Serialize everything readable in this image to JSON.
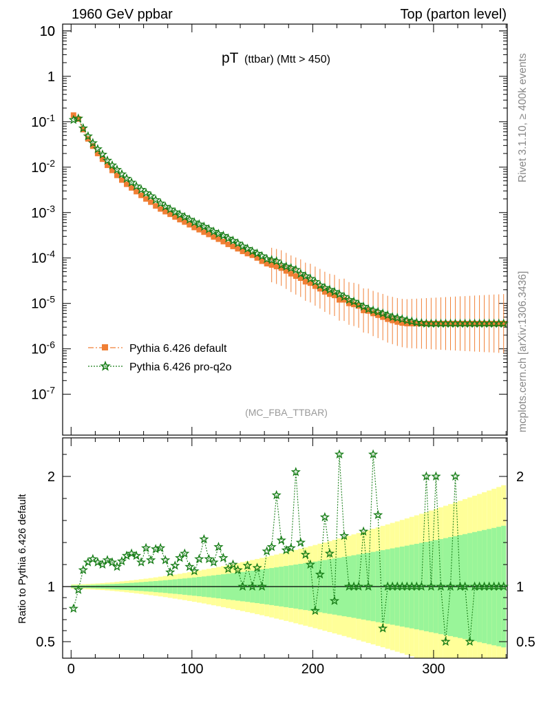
{
  "header": {
    "left": "1960 GeV ppbar",
    "right": "Top (parton level)"
  },
  "side": {
    "rivet": "Rivet 3.1.10, ≥ 400k events",
    "mcplots": "mcplots.cern.ch [arXiv:1306.3436]"
  },
  "chart_data": {
    "type": "scatter",
    "title_main": "pT",
    "title_sub": "(ttbar) (Mtt > 450)",
    "analysis_tag": "(MC_FBA_TTBAR)",
    "xlabel": "",
    "ylabel_ratio": "Ratio to Pythia 6.426 default",
    "xlim": [
      -7,
      361
    ],
    "ylim_main_log10": [
      -7.9,
      1.15
    ],
    "ylim_ratio": [
      0.35,
      2.35
    ],
    "x_ticks": [
      "0",
      "100",
      "200",
      "300"
    ],
    "y_ticks_main": [
      "10^-7",
      "10^-6",
      "10^-5",
      "10^-4",
      "10^-3",
      "10^-2",
      "10^-1",
      "1",
      "10"
    ],
    "y_ticks_ratio": [
      "0.5",
      "1",
      "2"
    ],
    "legend": [
      {
        "name": "Pythia 6.426 default",
        "color": "#f07f35",
        "marker": "square",
        "line": "dashdot"
      },
      {
        "name": "Pythia 6.426 pro-q2o",
        "color": "#177d17",
        "marker": "star",
        "line": "dotted"
      }
    ],
    "colors": {
      "band_yellow": "#ffff99",
      "band_green": "#99f599",
      "ref": "#f07f35",
      "mc": "#177d17"
    },
    "series": [
      {
        "name": "Pythia 6.426 default",
        "x": [
          2,
          6,
          10,
          14,
          18,
          22,
          26,
          30,
          34,
          38,
          42,
          46,
          50,
          54,
          58,
          62,
          66,
          70,
          74,
          78,
          82,
          86,
          90,
          94,
          98,
          102,
          106,
          110,
          114,
          118,
          122,
          126,
          130,
          134,
          138,
          142,
          146,
          150,
          154,
          158,
          162,
          166,
          170,
          174,
          178,
          182,
          186,
          190,
          194,
          198,
          202,
          206,
          210,
          214,
          218,
          222,
          226,
          230,
          234,
          238,
          242,
          246,
          250,
          254,
          258,
          262,
          266,
          270,
          274,
          278,
          282,
          286,
          290,
          294,
          298,
          302,
          306,
          310,
          314,
          318,
          322,
          326,
          330,
          334,
          338,
          342,
          346,
          350,
          354,
          358
        ],
        "values": [
          0.14,
          0.115,
          0.067,
          0.042,
          0.029,
          0.02,
          0.015,
          0.011,
          0.0085,
          0.0066,
          0.0052,
          0.0042,
          0.0035,
          0.0029,
          0.0024,
          0.002,
          0.0017,
          0.0014,
          0.0012,
          0.00105,
          0.00092,
          0.0008,
          0.0007,
          0.00062,
          0.00054,
          0.00047,
          0.00042,
          0.00037,
          0.00033,
          0.00029,
          0.00026,
          0.00023,
          0.0002,
          0.00018,
          0.00016,
          0.00014,
          0.000125,
          0.000115,
          0.0001,
          8.5e-05,
          7.5e-05,
          7e-05,
          6.5e-05,
          6e-05,
          5.2e-05,
          4.5e-05,
          4e-05,
          3.6e-05,
          3e-05,
          2.8e-05,
          2.4e-05,
          2.1e-05,
          1.8e-05,
          1.6e-05,
          1.5e-05,
          1.2e-05,
          1.2e-05,
          1e-05,
          9.5e-06,
          8.8e-06,
          7e-06,
          6.8e-06,
          6e-06,
          5.5e-06,
          5e-06,
          4.5e-06,
          4.2e-06,
          3.9e-06,
          3.7e-06,
          3.6e-06,
          3.6e-06,
          3.6e-06,
          3.6e-06,
          3.6e-06,
          3.6e-06,
          3.6e-06,
          3.6e-06,
          3.6e-06,
          3.6e-06,
          3.6e-06,
          3.6e-06,
          3.6e-06,
          3.6e-06,
          3.6e-06,
          3.6e-06,
          3.6e-06,
          3.6e-06,
          3.6e-06,
          3.6e-06,
          3.6e-06
        ]
      },
      {
        "name": "Pythia 6.426 pro-q2o",
        "x": [
          2,
          6,
          10,
          14,
          18,
          22,
          26,
          30,
          34,
          38,
          42,
          46,
          50,
          54,
          58,
          62,
          66,
          70,
          74,
          78,
          82,
          86,
          90,
          94,
          98,
          102,
          106,
          110,
          114,
          118,
          122,
          126,
          130,
          134,
          138,
          142,
          146,
          150,
          154,
          158,
          162,
          166,
          170,
          174,
          178,
          182,
          186,
          190,
          194,
          198,
          202,
          206,
          210,
          214,
          218,
          222,
          226,
          230,
          234,
          238,
          242,
          246,
          250,
          254,
          258,
          262,
          266,
          270,
          274,
          278,
          282,
          286,
          290,
          294,
          298,
          302,
          306,
          310,
          314,
          318,
          322,
          326,
          330,
          334,
          338,
          342,
          346,
          350,
          354,
          358
        ],
        "values": [
          0.11,
          0.118,
          0.072,
          0.048,
          0.034,
          0.025,
          0.019,
          0.014,
          0.011,
          0.0088,
          0.007,
          0.0056,
          0.0046,
          0.0038,
          0.0032,
          0.0027,
          0.0023,
          0.0019,
          0.0016,
          0.00135,
          0.00118,
          0.00102,
          0.0009,
          0.0008,
          0.0007,
          0.00061,
          0.00055,
          0.00049,
          0.00043,
          0.00038,
          0.00034,
          0.00031,
          0.00027,
          0.00024,
          0.00021,
          0.00018,
          0.00016,
          0.00014,
          0.000125,
          0.00011,
          9.5e-05,
          9e-05,
          8.5e-05,
          7e-05,
          6.5e-05,
          6e-05,
          5.5e-05,
          4.5e-05,
          4e-05,
          3.5e-05,
          3e-05,
          2.5e-05,
          2.2e-05,
          2e-05,
          1.8e-05,
          1.6e-05,
          1.4e-05,
          1.2e-05,
          1.1e-05,
          9.5e-06,
          8.5e-06,
          7.5e-06,
          7e-06,
          6.5e-06,
          6e-06,
          5.5e-06,
          5e-06,
          4.8e-06,
          4.5e-06,
          4.2e-06,
          4e-06,
          3.8e-06,
          3.7e-06,
          3.6e-06,
          3.6e-06,
          3.6e-06,
          3.6e-06,
          3.6e-06,
          3.6e-06,
          3.6e-06,
          3.6e-06,
          3.6e-06,
          3.6e-06,
          3.6e-06,
          3.6e-06,
          3.6e-06,
          3.6e-06,
          3.6e-06,
          3.6e-06,
          3.6e-06
        ]
      }
    ],
    "ratio": {
      "x": [
        2,
        6,
        10,
        14,
        18,
        22,
        26,
        30,
        34,
        38,
        42,
        46,
        50,
        54,
        58,
        62,
        66,
        70,
        74,
        78,
        82,
        86,
        90,
        94,
        98,
        102,
        106,
        110,
        114,
        118,
        122,
        126,
        130,
        134,
        138,
        142,
        146,
        150,
        154,
        158,
        162,
        166,
        170,
        174,
        178,
        182,
        186,
        190,
        194,
        198,
        202,
        206,
        210,
        214,
        218,
        222,
        226,
        230,
        234,
        238,
        242,
        246,
        250,
        254,
        258,
        262,
        266,
        270,
        274,
        278,
        282,
        286,
        290,
        294,
        298,
        302,
        306,
        310,
        314,
        318,
        322,
        326,
        330,
        334,
        338,
        342,
        346,
        350,
        354,
        358
      ],
      "values": [
        0.8,
        0.97,
        1.15,
        1.22,
        1.25,
        1.22,
        1.2,
        1.24,
        1.22,
        1.18,
        1.23,
        1.28,
        1.3,
        1.28,
        1.22,
        1.35,
        1.24,
        1.34,
        1.35,
        1.24,
        1.13,
        1.19,
        1.26,
        1.3,
        1.18,
        1.14,
        1.25,
        1.43,
        1.25,
        1.22,
        1.36,
        1.26,
        1.16,
        1.2,
        1.15,
        1.0,
        1.19,
        1.0,
        1.17,
        1.0,
        1.32,
        1.36,
        1.83,
        1.42,
        1.33,
        1.35,
        2.04,
        1.4,
        1.29,
        1.2,
        0.78,
        1.11,
        1.63,
        1.3,
        0.87,
        2.2,
        1.46,
        1.0,
        1.0,
        1.0,
        1.5,
        1.0,
        2.2,
        1.65,
        0.62,
        1.0,
        1.0,
        1.0,
        1.0,
        1.0,
        1.0,
        1.0,
        1.0,
        2.0,
        1.0,
        2.0,
        1.0,
        0.5,
        1.0,
        2.0,
        1.0,
        1.0,
        0.5,
        1.0,
        1.0,
        1.0,
        1.0,
        1.0,
        1.0,
        1.0
      ]
    }
  }
}
